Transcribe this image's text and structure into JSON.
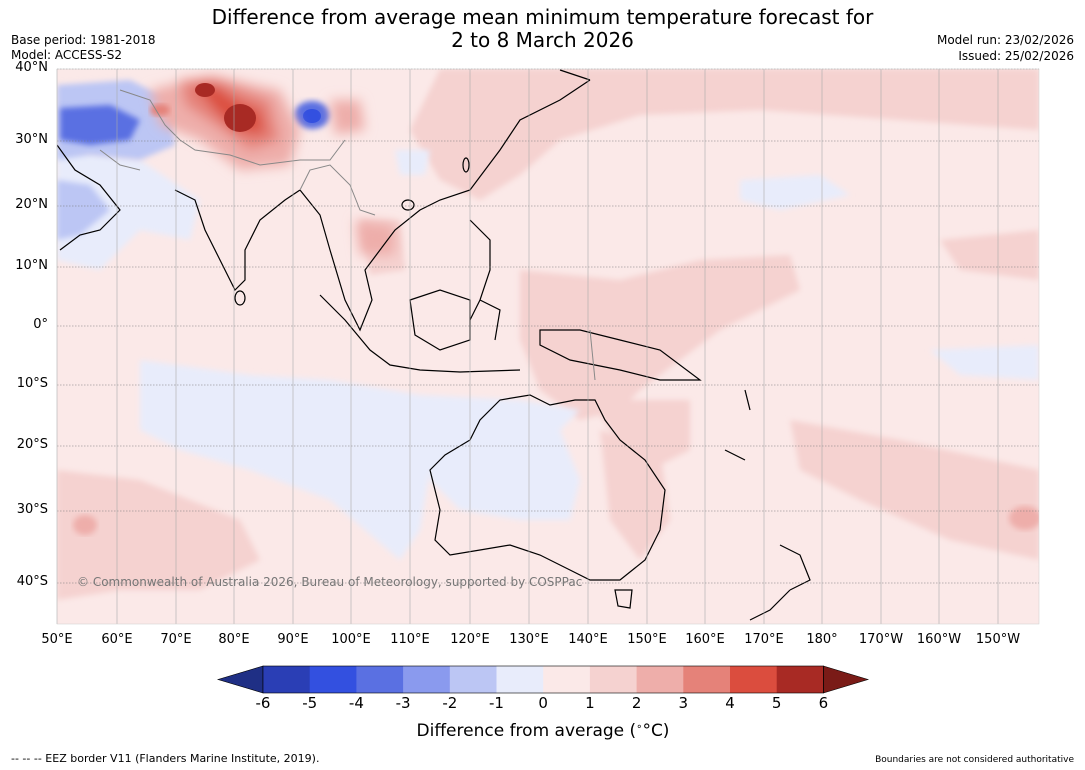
{
  "header": {
    "title_line1": "Difference from average mean minimum temperature forecast for",
    "title_line2": "2 to 8 March 2026",
    "base_period": "Base period: 1981-2018",
    "model": "Model: ACCESS-S2",
    "model_run": "Model run: 23/02/2026",
    "issued": "Issued: 25/02/2026"
  },
  "map": {
    "lat_labels": [
      "40°N",
      "30°N",
      "20°N",
      "10°N",
      "0°",
      "10°S",
      "20°S",
      "30°S",
      "40°S"
    ],
    "lon_labels": [
      "50°E",
      "60°E",
      "70°E",
      "80°E",
      "90°E",
      "100°E",
      "110°E",
      "120°E",
      "130°E",
      "140°E",
      "150°E",
      "160°E",
      "170°E",
      "180°",
      "170°W",
      "160°W",
      "150°W"
    ],
    "copyright": "© Commonwealth of Australia 2026, Bureau of Meteorology, supported by COSPPac"
  },
  "colorbar": {
    "labels": [
      "-6",
      "-5",
      "-4",
      "-3",
      "-2",
      "-1",
      "0",
      "1",
      "2",
      "3",
      "4",
      "5",
      "6"
    ],
    "colors": [
      "#1f2f85",
      "#2a3eb5",
      "#3350e0",
      "#5a70e2",
      "#8a9aee",
      "#bcc6f4",
      "#e8ecfb",
      "#fbe9e8",
      "#f5d2d0",
      "#eeaeaa",
      "#e58279",
      "#db4d3e",
      "#a82a24",
      "#7a1b17"
    ],
    "title": "Difference from average (",
    "title_unit": "°C)"
  },
  "footer": {
    "eez": "--  --  -- EEZ border V11 (Flanders Marine Institute, 2019).",
    "boundaries": "Boundaries are not considered authoritative"
  }
}
